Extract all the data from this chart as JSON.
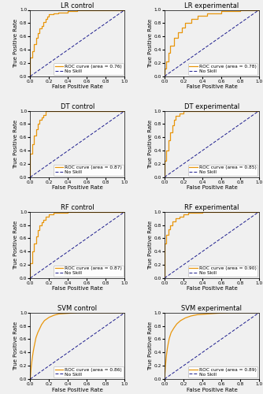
{
  "subplots": [
    {
      "title": "LR control",
      "auc": 0.76,
      "label": "ROC curve (area = 0.76)"
    },
    {
      "title": "LR experimental",
      "auc": 0.78,
      "label": "ROC curve (area = 0.78)"
    },
    {
      "title": "DT control",
      "auc": 0.87,
      "label": "ROC curve (area = 0.87)"
    },
    {
      "title": "DT experimental",
      "auc": 0.85,
      "label": "ROC curve (area = 0.85)"
    },
    {
      "title": "RF control",
      "auc": 0.87,
      "label": "ROC curve (area = 0.87)"
    },
    {
      "title": "RF experimental",
      "auc": 0.9,
      "label": "ROC curve (area = 0.90)"
    },
    {
      "title": "SVM control",
      "auc": 0.86,
      "label": "ROC curve (area = 0.86)"
    },
    {
      "title": "SVM experimental",
      "auc": 0.89,
      "label": "ROC curve (area = 0.89)"
    }
  ],
  "roc_color": "#E8960C",
  "skill_color": "#1A1A8C",
  "xlabel": "False Positive Rate",
  "ylabel": "True Positive Rate",
  "tick_labels": [
    "0.0",
    "0.2",
    "0.4",
    "0.6",
    "0.8",
    "1.0"
  ],
  "tick_vals": [
    0.0,
    0.2,
    0.4,
    0.6,
    0.8,
    1.0
  ],
  "title_fontsize": 6.0,
  "axis_label_fontsize": 5.0,
  "tick_fontsize": 4.2,
  "legend_fontsize": 4.2,
  "legend_loc": "lower right",
  "curves": {
    "LR control": {
      "fpr": [
        0.0,
        0.0,
        0.02,
        0.04,
        0.06,
        0.08,
        0.1,
        0.12,
        0.14,
        0.16,
        0.18,
        0.2,
        0.25,
        0.3,
        0.4,
        0.5,
        0.7,
        1.0
      ],
      "tpr": [
        0.0,
        0.28,
        0.38,
        0.48,
        0.58,
        0.65,
        0.72,
        0.76,
        0.82,
        0.86,
        0.9,
        0.93,
        0.95,
        0.96,
        0.98,
        0.99,
        1.0,
        1.0
      ],
      "step": true
    },
    "LR experimental": {
      "fpr": [
        0.0,
        0.0,
        0.02,
        0.04,
        0.06,
        0.1,
        0.14,
        0.18,
        0.22,
        0.28,
        0.35,
        0.45,
        0.6,
        0.8,
        1.0
      ],
      "tpr": [
        0.0,
        0.12,
        0.22,
        0.35,
        0.46,
        0.58,
        0.66,
        0.73,
        0.8,
        0.86,
        0.91,
        0.95,
        0.98,
        1.0,
        1.0
      ],
      "step": true
    },
    "DT control": {
      "fpr": [
        0.0,
        0.0,
        0.02,
        0.04,
        0.06,
        0.08,
        0.1,
        0.12,
        0.14,
        0.16,
        0.2,
        0.3,
        0.5,
        1.0
      ],
      "tpr": [
        0.0,
        0.35,
        0.5,
        0.63,
        0.72,
        0.8,
        0.86,
        0.9,
        0.94,
        1.0,
        1.0,
        1.0,
        1.0,
        1.0
      ],
      "step": true
    },
    "DT experimental": {
      "fpr": [
        0.0,
        0.0,
        0.02,
        0.04,
        0.06,
        0.08,
        0.1,
        0.12,
        0.16,
        0.2,
        0.3,
        0.5,
        1.0
      ],
      "tpr": [
        0.0,
        0.25,
        0.4,
        0.55,
        0.68,
        0.78,
        0.86,
        0.92,
        0.96,
        1.0,
        1.0,
        1.0,
        1.0
      ],
      "step": true
    },
    "RF control": {
      "fpr": [
        0.0,
        0.0,
        0.02,
        0.04,
        0.06,
        0.08,
        0.1,
        0.12,
        0.14,
        0.16,
        0.2,
        0.25,
        0.3,
        0.4,
        0.6,
        1.0
      ],
      "tpr": [
        0.0,
        0.22,
        0.4,
        0.52,
        0.63,
        0.72,
        0.79,
        0.84,
        0.88,
        0.92,
        0.96,
        0.98,
        0.99,
        1.0,
        1.0,
        1.0
      ],
      "step": true
    },
    "RF experimental": {
      "fpr": [
        0.0,
        0.0,
        0.02,
        0.04,
        0.06,
        0.08,
        0.12,
        0.16,
        0.2,
        0.25,
        0.3,
        0.4,
        0.6,
        1.0
      ],
      "tpr": [
        0.0,
        0.52,
        0.65,
        0.74,
        0.8,
        0.85,
        0.9,
        0.93,
        0.96,
        0.98,
        0.99,
        1.0,
        1.0,
        1.0
      ],
      "step": true
    },
    "SVM control": {
      "fpr": [
        0.0,
        0.01,
        0.02,
        0.03,
        0.04,
        0.05,
        0.06,
        0.08,
        0.1,
        0.12,
        0.15,
        0.2,
        0.25,
        0.3,
        0.4,
        0.5,
        0.6,
        0.7,
        0.8,
        0.9,
        1.0
      ],
      "tpr": [
        0.0,
        0.18,
        0.3,
        0.4,
        0.48,
        0.55,
        0.62,
        0.7,
        0.76,
        0.82,
        0.88,
        0.93,
        0.96,
        0.98,
        0.99,
        1.0,
        1.0,
        1.0,
        1.0,
        1.0,
        1.0
      ],
      "step": false
    },
    "SVM experimental": {
      "fpr": [
        0.0,
        0.01,
        0.02,
        0.03,
        0.04,
        0.05,
        0.07,
        0.1,
        0.13,
        0.17,
        0.22,
        0.28,
        0.35,
        0.45,
        0.55,
        0.7,
        0.85,
        1.0
      ],
      "tpr": [
        0.0,
        0.2,
        0.35,
        0.46,
        0.54,
        0.61,
        0.7,
        0.77,
        0.83,
        0.88,
        0.92,
        0.95,
        0.97,
        0.98,
        0.99,
        1.0,
        1.0,
        1.0
      ],
      "step": false
    }
  },
  "bg_color": "#f0f0f0"
}
